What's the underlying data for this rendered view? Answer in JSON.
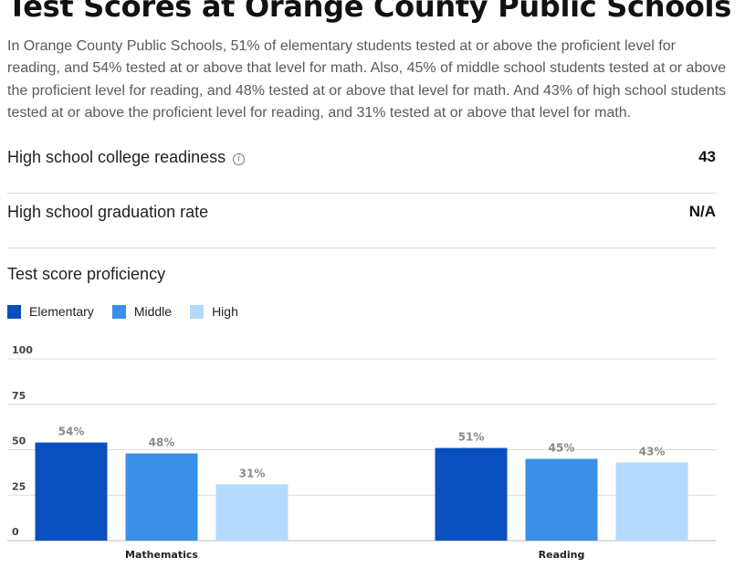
{
  "page": {
    "title": "Test Scores at Orange County Public Schools",
    "summary": "In Orange County Public Schools, 51% of elementary students tested at or above the proficient level for reading, and 54% tested at or above that level for math. Also, 45% of middle school students tested at or above the proficient level for reading, and 48% tested at or above that level for math. And 43% of high school students tested at or above the proficient level for reading, and 31% tested at or above that level for math."
  },
  "stats": [
    {
      "label": "High school college readiness",
      "value": "43",
      "icon": "info-icon",
      "icon_glyph": "i"
    },
    {
      "label": "High school graduation rate",
      "value": "N/A"
    }
  ],
  "chart_data": {
    "type": "bar",
    "title": "Test score proficiency",
    "categories": [
      "Mathematics",
      "Reading"
    ],
    "series": [
      {
        "name": "Elementary",
        "color": "#0a4fbf",
        "values": [
          54,
          51
        ]
      },
      {
        "name": "Middle",
        "color": "#3a8fe6",
        "values": [
          48,
          45
        ]
      },
      {
        "name": "High",
        "color": "#b3dafb",
        "values": [
          31,
          43
        ]
      }
    ],
    "ylim": [
      0,
      100
    ],
    "yticks": [
      0,
      25,
      50,
      75,
      100
    ],
    "value_suffix": "%",
    "grid": true,
    "legend": "top-left"
  }
}
